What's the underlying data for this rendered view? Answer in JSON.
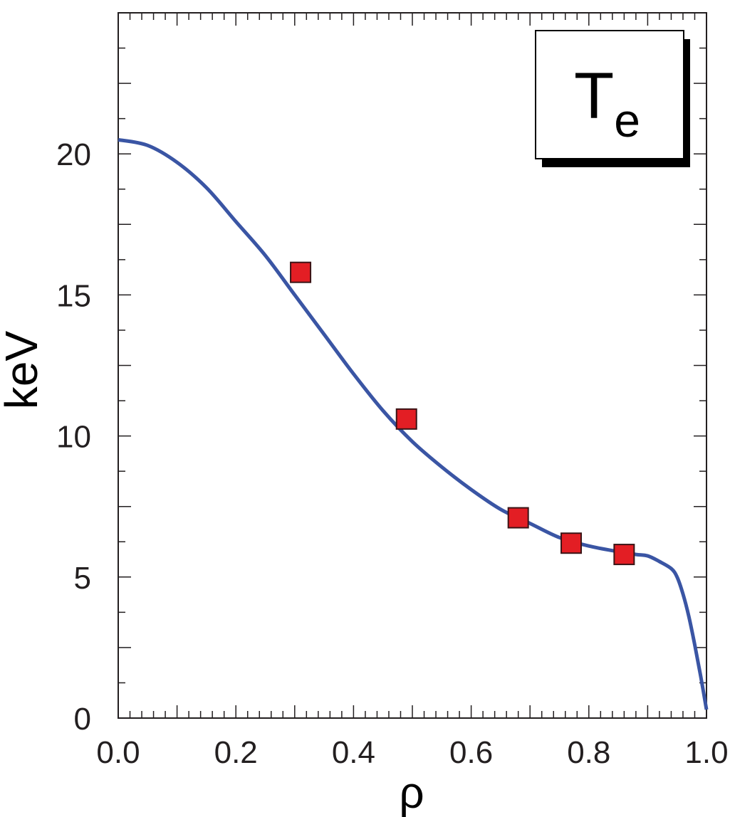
{
  "chart_data": {
    "type": "line",
    "xlabel": "ρ",
    "ylabel": "keV",
    "xlim": [
      0,
      1
    ],
    "ylim": [
      0,
      25
    ],
    "x_ticks": [
      "0.0",
      "0.2",
      "0.4",
      "0.6",
      "0.8",
      "1.0"
    ],
    "y_ticks": [
      "0",
      "5",
      "10",
      "15",
      "20"
    ],
    "grid": false,
    "legend": {
      "label_main": "T",
      "label_sub": "e",
      "placement": "top-right"
    },
    "series": [
      {
        "kind": "line",
        "color": "#3a55a4",
        "x": [
          0.0,
          0.05,
          0.1,
          0.15,
          0.2,
          0.25,
          0.3,
          0.35,
          0.4,
          0.45,
          0.5,
          0.55,
          0.6,
          0.65,
          0.7,
          0.75,
          0.8,
          0.85,
          0.88,
          0.9,
          0.92,
          0.94,
          0.95,
          0.96,
          0.97,
          0.98,
          0.99,
          1.0
        ],
        "y": [
          20.5,
          20.3,
          19.7,
          18.8,
          17.6,
          16.4,
          15.0,
          13.6,
          12.2,
          10.9,
          9.8,
          8.9,
          8.1,
          7.4,
          6.9,
          6.4,
          6.1,
          5.9,
          5.8,
          5.75,
          5.55,
          5.3,
          5.0,
          4.4,
          3.6,
          2.6,
          1.5,
          0.3
        ]
      },
      {
        "kind": "markers",
        "color": "#e31e24",
        "x": [
          0.31,
          0.49,
          0.68,
          0.77,
          0.86
        ],
        "y": [
          15.8,
          10.6,
          7.1,
          6.2,
          5.8
        ]
      }
    ]
  }
}
